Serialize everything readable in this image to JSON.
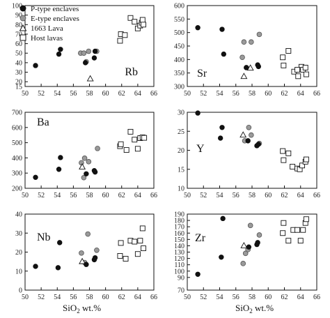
{
  "legend": {
    "items": [
      {
        "key": "p",
        "label": "P-type enclaves"
      },
      {
        "key": "e",
        "label": "E-type enclaves"
      },
      {
        "key": "l",
        "label": "1663 Lava"
      },
      {
        "key": "h",
        "label": "Host lavas"
      }
    ]
  },
  "xlabel_main": "SiO",
  "xlabel_sub": "2",
  "xlabel_tail": " wt.%",
  "chart_data": [
    {
      "type": "scatter",
      "label": "Rb",
      "xlim": [
        50,
        66
      ],
      "ylim": [
        15,
        100
      ],
      "xticks": [
        50,
        52,
        54,
        56,
        58,
        60,
        62,
        64,
        66
      ],
      "yticks": [
        15,
        20,
        30,
        40,
        50,
        60,
        70,
        80,
        90,
        100
      ],
      "series": [
        {
          "key": "p",
          "name": "P-type enclaves",
          "points": [
            [
              51.3,
              37
            ],
            [
              54.2,
              49
            ],
            [
              54.4,
              54
            ],
            [
              57.5,
              40
            ],
            [
              58.6,
              45
            ],
            [
              58.7,
              52
            ]
          ]
        },
        {
          "key": "e",
          "name": "E-type enclaves",
          "points": [
            [
              56.9,
              50
            ],
            [
              57.3,
              50
            ],
            [
              57.6,
              41
            ],
            [
              57.9,
              52
            ],
            [
              58.9,
              52
            ]
          ]
        },
        {
          "key": "l",
          "name": "1663 Lava",
          "points": [
            [
              58.1,
              23
            ]
          ]
        },
        {
          "key": "h",
          "name": "Host lavas",
          "points": [
            [
              61.8,
              63
            ],
            [
              61.9,
              70
            ],
            [
              62.4,
              69
            ],
            [
              63.1,
              87
            ],
            [
              63.6,
              83
            ],
            [
              64.0,
              76
            ],
            [
              64.3,
              79
            ],
            [
              64.5,
              82
            ],
            [
              64.6,
              85
            ],
            [
              64.7,
              80
            ]
          ]
        }
      ]
    },
    {
      "type": "scatter",
      "label": "Sr",
      "xlim": [
        50,
        66
      ],
      "ylim": [
        300,
        600
      ],
      "xticks": [
        50,
        52,
        54,
        56,
        58,
        60,
        62,
        64,
        66
      ],
      "yticks": [
        300,
        350,
        400,
        450,
        500,
        550,
        600
      ],
      "series": [
        {
          "key": "p",
          "name": "P-type enclaves",
          "points": [
            [
              51.3,
              518
            ],
            [
              54.3,
              512
            ],
            [
              54.5,
              420
            ],
            [
              57.3,
              370
            ],
            [
              58.7,
              380
            ],
            [
              58.8,
              374
            ]
          ]
        },
        {
          "key": "e",
          "name": "E-type enclaves",
          "points": [
            [
              57.0,
              465
            ],
            [
              57.3,
              370
            ],
            [
              57.9,
              465
            ],
            [
              58.9,
              493
            ],
            [
              56.8,
              408
            ]
          ]
        },
        {
          "key": "l",
          "name": "1663 Lava",
          "points": [
            [
              57.0,
              337
            ],
            [
              57.8,
              368
            ]
          ]
        },
        {
          "key": "h",
          "name": "Host lavas",
          "points": [
            [
              61.8,
              408
            ],
            [
              61.9,
              378
            ],
            [
              62.5,
              432
            ],
            [
              63.2,
              355
            ],
            [
              63.7,
              338
            ],
            [
              64.1,
              373
            ],
            [
              64.3,
              362
            ],
            [
              64.6,
              370
            ],
            [
              64.7,
              345
            ],
            [
              63.6,
              362
            ]
          ]
        }
      ]
    },
    {
      "type": "scatter",
      "label": "Ba",
      "xlim": [
        50,
        66
      ],
      "ylim": [
        200,
        700
      ],
      "xticks": [
        50,
        52,
        54,
        56,
        58,
        60,
        62,
        64,
        66
      ],
      "yticks": [
        200,
        300,
        400,
        500,
        600,
        700
      ],
      "series": [
        {
          "key": "p",
          "name": "P-type enclaves",
          "points": [
            [
              51.3,
              272
            ],
            [
              54.2,
              325
            ],
            [
              54.4,
              402
            ],
            [
              57.6,
              295
            ],
            [
              58.6,
              316
            ],
            [
              58.7,
              307
            ]
          ]
        },
        {
          "key": "e",
          "name": "E-type enclaves",
          "points": [
            [
              57.0,
              368
            ],
            [
              57.4,
              398
            ],
            [
              57.9,
              375
            ],
            [
              59.0,
              462
            ],
            [
              57.3,
              270
            ]
          ]
        },
        {
          "key": "l",
          "name": "1663 Lava",
          "points": [
            [
              57.1,
              340
            ]
          ]
        },
        {
          "key": "h",
          "name": "Host lavas",
          "points": [
            [
              61.8,
              477
            ],
            [
              61.9,
              490
            ],
            [
              62.6,
              452
            ],
            [
              63.1,
              572
            ],
            [
              63.6,
              520
            ],
            [
              64.0,
              460
            ],
            [
              64.3,
              530
            ],
            [
              64.6,
              535
            ],
            [
              64.8,
              532
            ]
          ]
        }
      ]
    },
    {
      "type": "scatter",
      "label": "Y",
      "xlim": [
        50,
        66
      ],
      "ylim": [
        10,
        30
      ],
      "xticks": [
        50,
        52,
        54,
        56,
        58,
        60,
        62,
        64,
        66
      ],
      "yticks": [
        10,
        15,
        20,
        25,
        30
      ],
      "series": [
        {
          "key": "p",
          "name": "P-type enclaves",
          "points": [
            [
              51.3,
              29.8
            ],
            [
              54.1,
              23.2
            ],
            [
              54.3,
              26.0
            ],
            [
              57.5,
              22.5
            ],
            [
              58.6,
              21.2
            ],
            [
              58.8,
              21.6
            ]
          ]
        },
        {
          "key": "e",
          "name": "E-type enclaves",
          "points": [
            [
              57.1,
              22.5
            ],
            [
              57.6,
              26.0
            ],
            [
              57.9,
              24.0
            ],
            [
              58.9,
              21.8
            ]
          ]
        },
        {
          "key": "l",
          "name": "1663 Lava",
          "points": [
            [
              56.9,
              24.0
            ]
          ]
        },
        {
          "key": "h",
          "name": "Host lavas",
          "points": [
            [
              61.8,
              19.8
            ],
            [
              61.9,
              17.4
            ],
            [
              62.5,
              19.2
            ],
            [
              63.0,
              15.7
            ],
            [
              63.6,
              15.2
            ],
            [
              63.9,
              15.0
            ],
            [
              64.2,
              16.0
            ],
            [
              64.6,
              17.0
            ],
            [
              64.7,
              17.6
            ]
          ]
        }
      ]
    },
    {
      "type": "scatter",
      "label": "Nb",
      "xlim": [
        50,
        66
      ],
      "ylim": [
        0,
        40
      ],
      "xticks": [
        50,
        52,
        54,
        56,
        58,
        60,
        62,
        64,
        66
      ],
      "yticks": [
        0,
        10,
        20,
        30,
        40
      ],
      "series": [
        {
          "key": "p",
          "name": "P-type enclaves",
          "points": [
            [
              51.3,
              12.5
            ],
            [
              54.1,
              11.8
            ],
            [
              54.3,
              25.0
            ],
            [
              57.6,
              13.5
            ],
            [
              58.6,
              16.0
            ],
            [
              58.7,
              17.0
            ]
          ]
        },
        {
          "key": "e",
          "name": "E-type enclaves",
          "points": [
            [
              57.0,
              19.5
            ],
            [
              57.4,
              14.5
            ],
            [
              57.8,
              29.5
            ],
            [
              58.9,
              21.0
            ]
          ]
        },
        {
          "key": "l",
          "name": "1663 Lava",
          "points": [
            [
              57.1,
              15.0
            ]
          ]
        },
        {
          "key": "h",
          "name": "Host lavas",
          "points": [
            [
              61.8,
              18.0
            ],
            [
              61.9,
              24.8
            ],
            [
              62.5,
              16.5
            ],
            [
              63.1,
              26.0
            ],
            [
              63.6,
              25.5
            ],
            [
              64.0,
              19.0
            ],
            [
              64.3,
              26.0
            ],
            [
              64.6,
              32.5
            ],
            [
              64.7,
              22.0
            ]
          ]
        }
      ]
    },
    {
      "type": "scatter",
      "label": "Zr",
      "xlim": [
        50,
        66
      ],
      "ylim": [
        70,
        190
      ],
      "xticks": [
        50,
        52,
        54,
        56,
        58,
        60,
        62,
        64,
        66
      ],
      "yticks": [
        70,
        90,
        100,
        110,
        120,
        130,
        140,
        150,
        160,
        170,
        180,
        190
      ],
      "series": [
        {
          "key": "p",
          "name": "P-type enclaves",
          "points": [
            [
              51.3,
              95
            ],
            [
              54.2,
              122
            ],
            [
              54.4,
              183
            ],
            [
              57.6,
              138
            ],
            [
              58.6,
              142
            ],
            [
              58.7,
              145
            ]
          ]
        },
        {
          "key": "e",
          "name": "E-type enclaves",
          "points": [
            [
              56.9,
              112
            ],
            [
              57.2,
              128
            ],
            [
              57.5,
              134
            ],
            [
              57.8,
              172
            ],
            [
              58.9,
              157
            ]
          ]
        },
        {
          "key": "l",
          "name": "1663 Lava",
          "points": [
            [
              57.0,
              140
            ]
          ]
        },
        {
          "key": "h",
          "name": "Host lavas",
          "points": [
            [
              61.8,
              160
            ],
            [
              61.9,
              176
            ],
            [
              62.5,
              148
            ],
            [
              63.1,
              165
            ],
            [
              63.6,
              165
            ],
            [
              64.0,
              148
            ],
            [
              64.3,
              165
            ],
            [
              64.6,
              176
            ],
            [
              64.7,
              182
            ]
          ]
        }
      ]
    }
  ]
}
